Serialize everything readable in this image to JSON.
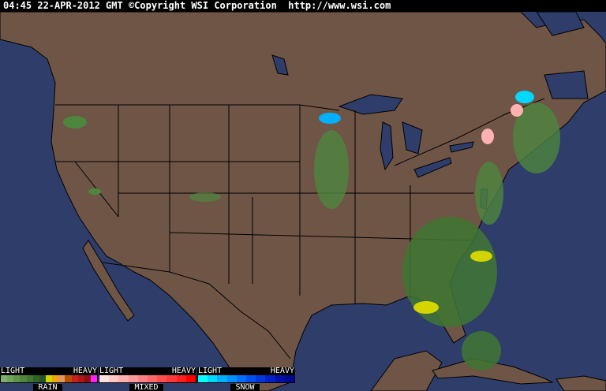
{
  "header": {
    "timestamp": "04:45 22-APR-2012 GMT",
    "copyright": "©Copyright WSI Corporation",
    "url": "http://www.wsi.com"
  },
  "colors": {
    "ocean": "#2f3d6b",
    "land": "#6e5546",
    "borders": "#000000"
  },
  "legend": [
    {
      "name": "RAIN",
      "light": "LIGHT",
      "heavy": "HEAVY",
      "colors": [
        "#7fb06a",
        "#6ea35a",
        "#5e944c",
        "#4e863e",
        "#3f7733",
        "#2f6628",
        "#245620",
        "#d4d400",
        "#f0a800",
        "#e09860",
        "#b85000",
        "#c82020",
        "#b01818",
        "#901010",
        "#ff20ff"
      ]
    },
    {
      "name": "MIXED",
      "light": "LIGHT",
      "heavy": "HEAVY",
      "colors": [
        "#ffe0e0",
        "#ffc8c8",
        "#ffb0b0",
        "#ff9898",
        "#ff8080",
        "#ff6868",
        "#ff5050",
        "#ff3838",
        "#ff2020",
        "#ff0000"
      ]
    },
    {
      "name": "SNOW",
      "light": "LIGHT",
      "heavy": "HEAVY",
      "colors": [
        "#00ffff",
        "#00d8ff",
        "#00b0ff",
        "#0090ff",
        "#0070ff",
        "#0050f0",
        "#0038e0",
        "#0020c8",
        "#0010a8",
        "#000890"
      ]
    }
  ]
}
